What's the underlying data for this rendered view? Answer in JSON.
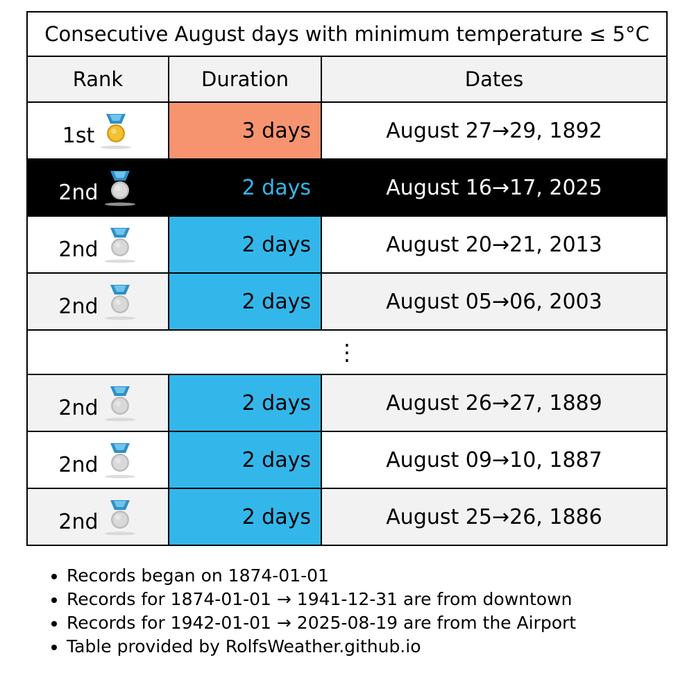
{
  "table": {
    "title": "Consecutive August days with minimum temperature ≤ 5°C",
    "headers": {
      "rank": "Rank",
      "duration": "Duration",
      "dates": "Dates"
    },
    "ellipsis": "⋮",
    "rows_top": [
      {
        "rank": "1st",
        "medal": "gold-medal-icon",
        "duration": "3 days",
        "dates": "August 27→29, 1892"
      },
      {
        "rank": "2nd",
        "medal": "silver-medal-icon",
        "duration": "2 days",
        "dates": "August 16→17, 2025"
      },
      {
        "rank": "2nd",
        "medal": "silver-medal-icon",
        "duration": "2 days",
        "dates": "August 20→21, 2013"
      },
      {
        "rank": "2nd",
        "medal": "silver-medal-icon",
        "duration": "2 days",
        "dates": "August 05→06, 2003"
      }
    ],
    "rows_bottom": [
      {
        "rank": "2nd",
        "medal": "silver-medal-icon",
        "duration": "2 days",
        "dates": "August 26→27, 1889"
      },
      {
        "rank": "2nd",
        "medal": "silver-medal-icon",
        "duration": "2 days",
        "dates": "August 09→10, 1887"
      },
      {
        "rank": "2nd",
        "medal": "silver-medal-icon",
        "duration": "2 days",
        "dates": "August 25→26, 1886"
      }
    ]
  },
  "colors": {
    "duration_3_days": "#f79470",
    "duration_2_days": "#33b7eb",
    "highlight_row": "#000000",
    "header_bg": "#f2f2f2"
  },
  "notes": [
    "Records began on 1874-01-01",
    "Records for 1874-01-01 → 1941-12-31 are from downtown",
    "Records for 1942-01-01 → 2025-08-19 are from the Airport",
    "Table provided by RolfsWeather.github.io"
  ]
}
